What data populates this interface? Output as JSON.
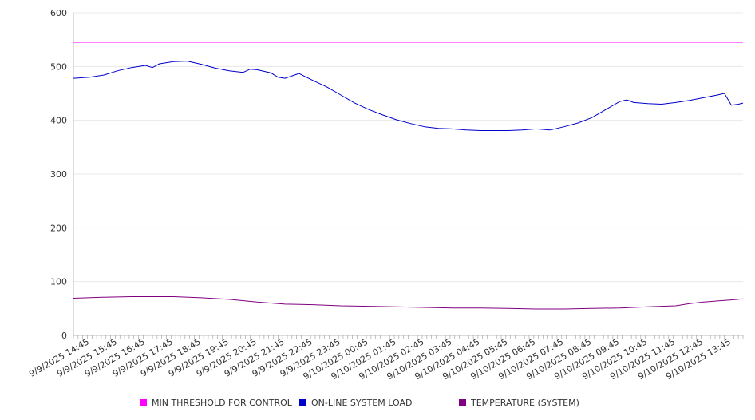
{
  "chart_data": {
    "type": "line",
    "title": "",
    "xlabel": "",
    "ylabel": "",
    "ylim": [
      0,
      600
    ],
    "y_ticks": [
      "0",
      "100",
      "200",
      "300",
      "400",
      "500",
      "600"
    ],
    "x_tick_labels": [
      "9/9/2025 14:45",
      "9/9/2025 15:45",
      "9/9/2025 16:45",
      "9/9/2025 17:45",
      "9/9/2025 18:45",
      "9/9/2025 19:45",
      "9/9/2025 20:45",
      "9/9/2025 21:45",
      "9/9/2025 22:45",
      "9/9/2025 23:45",
      "9/10/2025 00:45",
      "9/10/2025 01:45",
      "9/10/2025 02:45",
      "9/10/2025 03:45",
      "9/10/2025 04:45",
      "9/10/2025 05:45",
      "9/10/2025 06:45",
      "9/10/2025 07:45",
      "9/10/2025 08:45",
      "9/10/2025 09:45",
      "9/10/2025 10:45",
      "9/10/2025 11:45",
      "9/10/2025 12:45",
      "9/10/2025 13:45"
    ],
    "x_start": "9/9/2025 14:10",
    "x_end": "9/10/2025 14:10",
    "grid": true,
    "legend_position": "bottom",
    "series": [
      {
        "name": "MIN THRESHOLD FOR CONTROL",
        "color": "#ff00ff",
        "points": [
          [
            "9/9/2025 14:10",
            545
          ],
          [
            "9/10/2025 14:10",
            545
          ]
        ]
      },
      {
        "name": "ON-LINE SYSTEM LOAD",
        "color": "#0000cc",
        "points": [
          [
            "9/9/2025 14:10",
            478
          ],
          [
            "9/9/2025 14:45",
            480
          ],
          [
            "9/9/2025 15:15",
            484
          ],
          [
            "9/9/2025 15:45",
            492
          ],
          [
            "9/9/2025 16:15",
            498
          ],
          [
            "9/9/2025 16:45",
            502
          ],
          [
            "9/9/2025 17:00",
            498
          ],
          [
            "9/9/2025 17:15",
            505
          ],
          [
            "9/9/2025 17:45",
            509
          ],
          [
            "9/9/2025 18:15",
            510
          ],
          [
            "9/9/2025 18:45",
            504
          ],
          [
            "9/9/2025 19:15",
            497
          ],
          [
            "9/9/2025 19:45",
            492
          ],
          [
            "9/9/2025 20:15",
            489
          ],
          [
            "9/9/2025 20:30",
            495
          ],
          [
            "9/9/2025 20:45",
            494
          ],
          [
            "9/9/2025 21:15",
            488
          ],
          [
            "9/9/2025 21:30",
            480
          ],
          [
            "9/9/2025 21:45",
            478
          ],
          [
            "9/9/2025 22:15",
            487
          ],
          [
            "9/9/2025 22:45",
            474
          ],
          [
            "9/9/2025 23:15",
            462
          ],
          [
            "9/9/2025 23:45",
            447
          ],
          [
            "9/10/2025 00:15",
            432
          ],
          [
            "9/10/2025 00:45",
            420
          ],
          [
            "9/10/2025 01:15",
            410
          ],
          [
            "9/10/2025 01:45",
            401
          ],
          [
            "9/10/2025 02:15",
            394
          ],
          [
            "9/10/2025 02:45",
            388
          ],
          [
            "9/10/2025 03:15",
            385
          ],
          [
            "9/10/2025 03:45",
            384
          ],
          [
            "9/10/2025 04:15",
            382
          ],
          [
            "9/10/2025 04:45",
            381
          ],
          [
            "9/10/2025 05:15",
            381
          ],
          [
            "9/10/2025 05:45",
            381
          ],
          [
            "9/10/2025 06:15",
            382
          ],
          [
            "9/10/2025 06:45",
            384
          ],
          [
            "9/10/2025 07:15",
            382
          ],
          [
            "9/10/2025 07:45",
            388
          ],
          [
            "9/10/2025 08:15",
            395
          ],
          [
            "9/10/2025 08:45",
            405
          ],
          [
            "9/10/2025 09:15",
            420
          ],
          [
            "9/10/2025 09:45",
            435
          ],
          [
            "9/10/2025 10:00",
            438
          ],
          [
            "9/10/2025 10:15",
            433
          ],
          [
            "9/10/2025 10:45",
            431
          ],
          [
            "9/10/2025 11:15",
            430
          ],
          [
            "9/10/2025 11:45",
            433
          ],
          [
            "9/10/2025 12:15",
            437
          ],
          [
            "9/10/2025 12:45",
            442
          ],
          [
            "9/10/2025 13:15",
            447
          ],
          [
            "9/10/2025 13:30",
            450
          ],
          [
            "9/10/2025 13:45",
            428
          ],
          [
            "9/10/2025 14:00",
            430
          ],
          [
            "9/10/2025 14:10",
            432
          ]
        ]
      },
      {
        "name": "TEMPERATURE (SYSTEM)",
        "color": "#800080",
        "points": [
          [
            "9/9/2025 14:10",
            69
          ],
          [
            "9/9/2025 15:15",
            71
          ],
          [
            "9/9/2025 16:15",
            72
          ],
          [
            "9/9/2025 17:45",
            72
          ],
          [
            "9/9/2025 18:45",
            70
          ],
          [
            "9/9/2025 19:45",
            67
          ],
          [
            "9/9/2025 20:45",
            62
          ],
          [
            "9/9/2025 21:45",
            58
          ],
          [
            "9/9/2025 22:45",
            57
          ],
          [
            "9/9/2025 23:45",
            55
          ],
          [
            "9/10/2025 00:45",
            54
          ],
          [
            "9/10/2025 01:45",
            53
          ],
          [
            "9/10/2025 02:45",
            52
          ],
          [
            "9/10/2025 03:45",
            51
          ],
          [
            "9/10/2025 04:45",
            51
          ],
          [
            "9/10/2025 05:45",
            50
          ],
          [
            "9/10/2025 06:45",
            49
          ],
          [
            "9/10/2025 07:45",
            49
          ],
          [
            "9/10/2025 08:45",
            50
          ],
          [
            "9/10/2025 09:45",
            51
          ],
          [
            "9/10/2025 10:45",
            53
          ],
          [
            "9/10/2025 11:15",
            54
          ],
          [
            "9/10/2025 11:45",
            55
          ],
          [
            "9/10/2025 12:15",
            59
          ],
          [
            "9/10/2025 12:45",
            62
          ],
          [
            "9/10/2025 13:15",
            64
          ],
          [
            "9/10/2025 13:45",
            66
          ],
          [
            "9/10/2025 14:10",
            68
          ]
        ]
      }
    ]
  }
}
